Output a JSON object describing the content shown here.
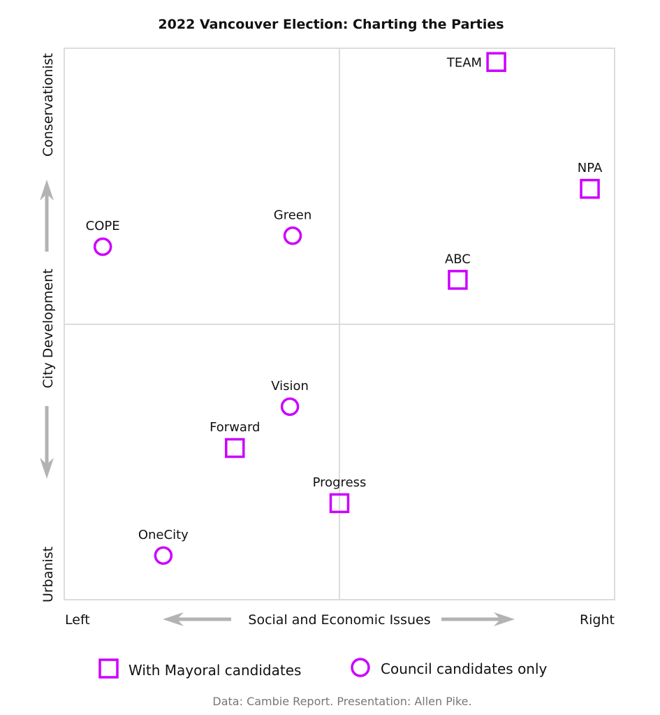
{
  "chart_data": {
    "type": "scatter",
    "title": "2022 Vancouver Election: Charting the Parties",
    "xlabel": "Social and Economic Issues",
    "ylabel": "City Development",
    "x_range": [
      -1,
      1
    ],
    "y_range": [
      -1,
      1
    ],
    "x_ticks": {
      "min_label": "Left",
      "max_label": "Right"
    },
    "y_ticks": {
      "min_label": "Urbanist",
      "max_label": "Conservationist"
    },
    "quadrant_lines": true,
    "marker_color": "#cc00ff",
    "series": [
      {
        "name": "With Mayoral candidates",
        "marker": "square",
        "points": [
          {
            "label": "TEAM",
            "x": 0.57,
            "y": 0.95,
            "label_pos": "left"
          },
          {
            "label": "NPA",
            "x": 0.91,
            "y": 0.49,
            "label_pos": "top"
          },
          {
            "label": "ABC",
            "x": 0.43,
            "y": 0.16,
            "label_pos": "top"
          },
          {
            "label": "Forward",
            "x": -0.38,
            "y": -0.45,
            "label_pos": "top"
          },
          {
            "label": "Progress",
            "x": 0.0,
            "y": -0.65,
            "label_pos": "top"
          }
        ]
      },
      {
        "name": "Council candidates only",
        "marker": "circle",
        "points": [
          {
            "label": "COPE",
            "x": -0.86,
            "y": 0.28,
            "label_pos": "top"
          },
          {
            "label": "Green",
            "x": -0.17,
            "y": 0.32,
            "label_pos": "top"
          },
          {
            "label": "Vision",
            "x": -0.18,
            "y": -0.3,
            "label_pos": "top"
          },
          {
            "label": "OneCity",
            "x": -0.64,
            "y": -0.84,
            "label_pos": "top"
          }
        ]
      }
    ],
    "legend": {
      "position": "bottom",
      "items": [
        {
          "label": "With Mayoral candidates",
          "marker": "square"
        },
        {
          "label": "Council candidates only",
          "marker": "circle"
        }
      ]
    },
    "source": "Data: Cambie Report. Presentation: Allen Pike."
  }
}
